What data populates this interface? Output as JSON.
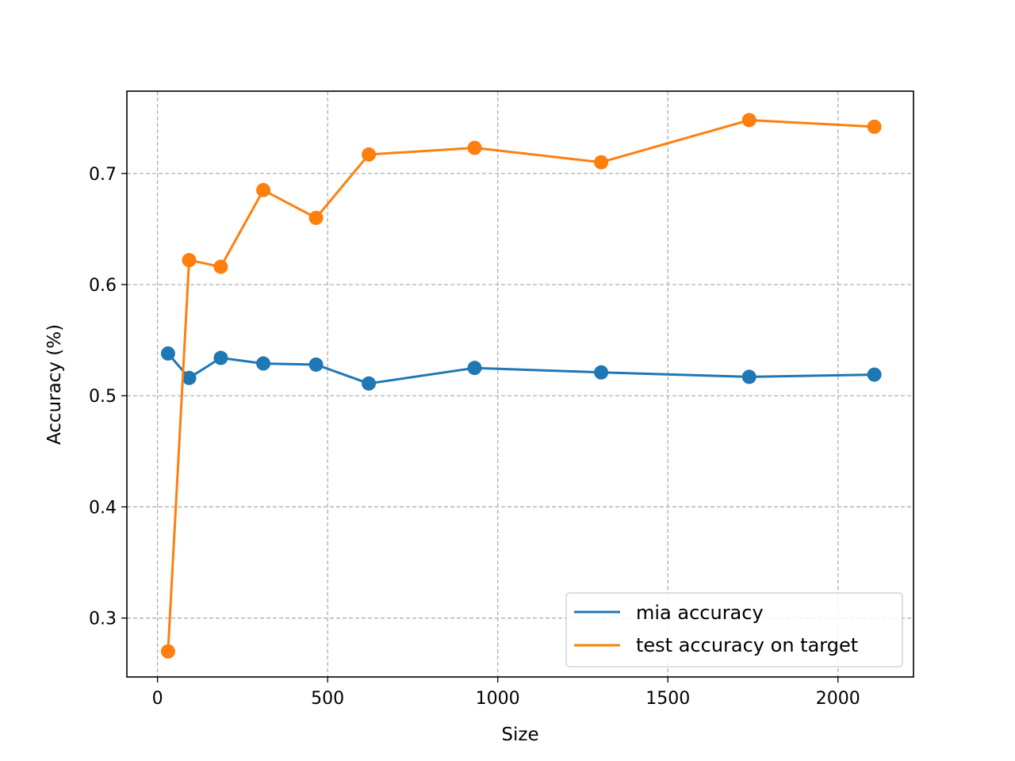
{
  "chart_data": {
    "type": "line",
    "title": "",
    "xlabel": "Size",
    "ylabel": "Accuracy (%)",
    "xlim": [
      -90,
      2222
    ],
    "ylim": [
      0.247,
      0.774
    ],
    "xticks": [
      0,
      500,
      1000,
      1500,
      2000
    ],
    "yticks": [
      0.3,
      0.4,
      0.5,
      0.6,
      0.7
    ],
    "xtick_labels": [
      "0",
      "500",
      "1000",
      "1500",
      "2000"
    ],
    "ytick_labels": [
      "0.3",
      "0.4",
      "0.5",
      "0.6",
      "0.7"
    ],
    "grid": true,
    "legend_position": "lower-right",
    "x": [
      31,
      93,
      186,
      311,
      466,
      621,
      932,
      1304,
      1739,
      2107
    ],
    "series": [
      {
        "name": "mia accuracy",
        "color": "#1f77b4",
        "values": [
          0.538,
          0.516,
          0.534,
          0.529,
          0.528,
          0.511,
          0.525,
          0.521,
          0.517,
          0.519
        ]
      },
      {
        "name": "test accuracy on target",
        "color": "#ff7f0e",
        "values": [
          0.27,
          0.622,
          0.616,
          0.685,
          0.66,
          0.717,
          0.723,
          0.71,
          0.748,
          0.742
        ]
      }
    ]
  }
}
